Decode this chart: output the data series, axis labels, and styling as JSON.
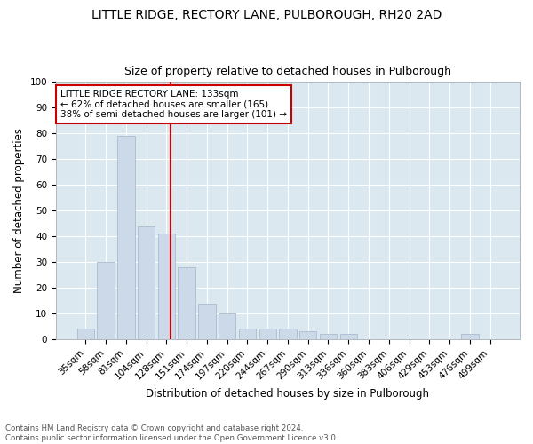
{
  "title": "LITTLE RIDGE, RECTORY LANE, PULBOROUGH, RH20 2AD",
  "subtitle": "Size of property relative to detached houses in Pulborough",
  "xlabel": "Distribution of detached houses by size in Pulborough",
  "ylabel": "Number of detached properties",
  "categories": [
    "35sqm",
    "58sqm",
    "81sqm",
    "104sqm",
    "128sqm",
    "151sqm",
    "174sqm",
    "197sqm",
    "220sqm",
    "244sqm",
    "267sqm",
    "290sqm",
    "313sqm",
    "336sqm",
    "360sqm",
    "383sqm",
    "406sqm",
    "429sqm",
    "453sqm",
    "476sqm",
    "499sqm"
  ],
  "values": [
    4,
    30,
    79,
    44,
    41,
    28,
    14,
    10,
    4,
    4,
    4,
    3,
    2,
    2,
    0,
    0,
    0,
    0,
    0,
    2,
    0
  ],
  "bar_color": "#ccd9e8",
  "bar_edgecolor": "#aabccc",
  "vline_color": "#cc0000",
  "annotation_text": "LITTLE RIDGE RECTORY LANE: 133sqm\n← 62% of detached houses are smaller (165)\n38% of semi-detached houses are larger (101) →",
  "annotation_box_color": "#ffffff",
  "annotation_box_edgecolor": "#cc0000",
  "ylim": [
    0,
    100
  ],
  "yticks": [
    0,
    10,
    20,
    30,
    40,
    50,
    60,
    70,
    80,
    90,
    100
  ],
  "footer": "Contains HM Land Registry data © Crown copyright and database right 2024.\nContains public sector information licensed under the Open Government Licence v3.0.",
  "plot_bg_color": "#dce8f0",
  "title_fontsize": 10,
  "subtitle_fontsize": 9,
  "label_fontsize": 8.5,
  "tick_fontsize": 7.5,
  "annot_fontsize": 7.5
}
